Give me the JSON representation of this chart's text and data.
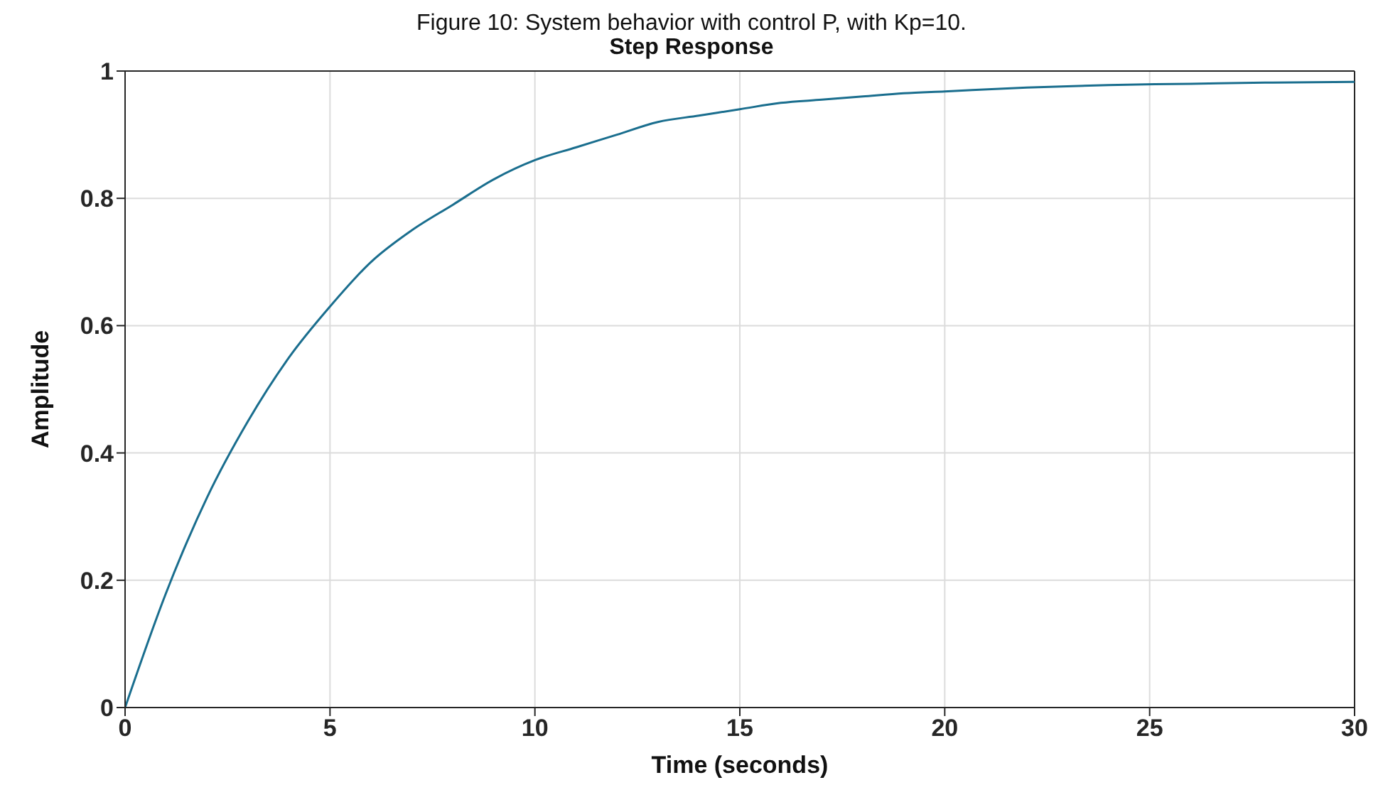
{
  "chart_data": {
    "type": "line",
    "title": "Figure 10: System behavior with control P, with Kp=10.",
    "subtitle": "Step Response",
    "xlabel": "Time (seconds)",
    "ylabel": "Amplitude",
    "x": [
      0,
      1,
      2,
      3,
      4,
      5,
      6,
      7,
      8,
      9,
      10,
      11,
      12,
      13,
      14,
      15,
      16,
      17,
      18,
      19,
      20,
      22,
      24,
      26,
      28,
      30
    ],
    "series": [
      {
        "color": "#1a6e8e",
        "values": [
          0,
          0.18,
          0.33,
          0.45,
          0.55,
          0.63,
          0.7,
          0.75,
          0.79,
          0.83,
          0.86,
          0.88,
          0.9,
          0.92,
          0.93,
          0.94,
          0.95,
          0.955,
          0.96,
          0.965,
          0.968,
          0.974,
          0.978,
          0.98,
          0.982,
          0.983
        ]
      }
    ],
    "xlim": [
      0,
      30
    ],
    "xticks": [
      0,
      5,
      10,
      15,
      20,
      25,
      30
    ],
    "ylim": [
      0,
      1
    ],
    "yticks": [
      0,
      0.2,
      0.4,
      0.6,
      0.8,
      1
    ],
    "grid": true,
    "legend": false,
    "marker": "none",
    "line_style": "solid"
  }
}
